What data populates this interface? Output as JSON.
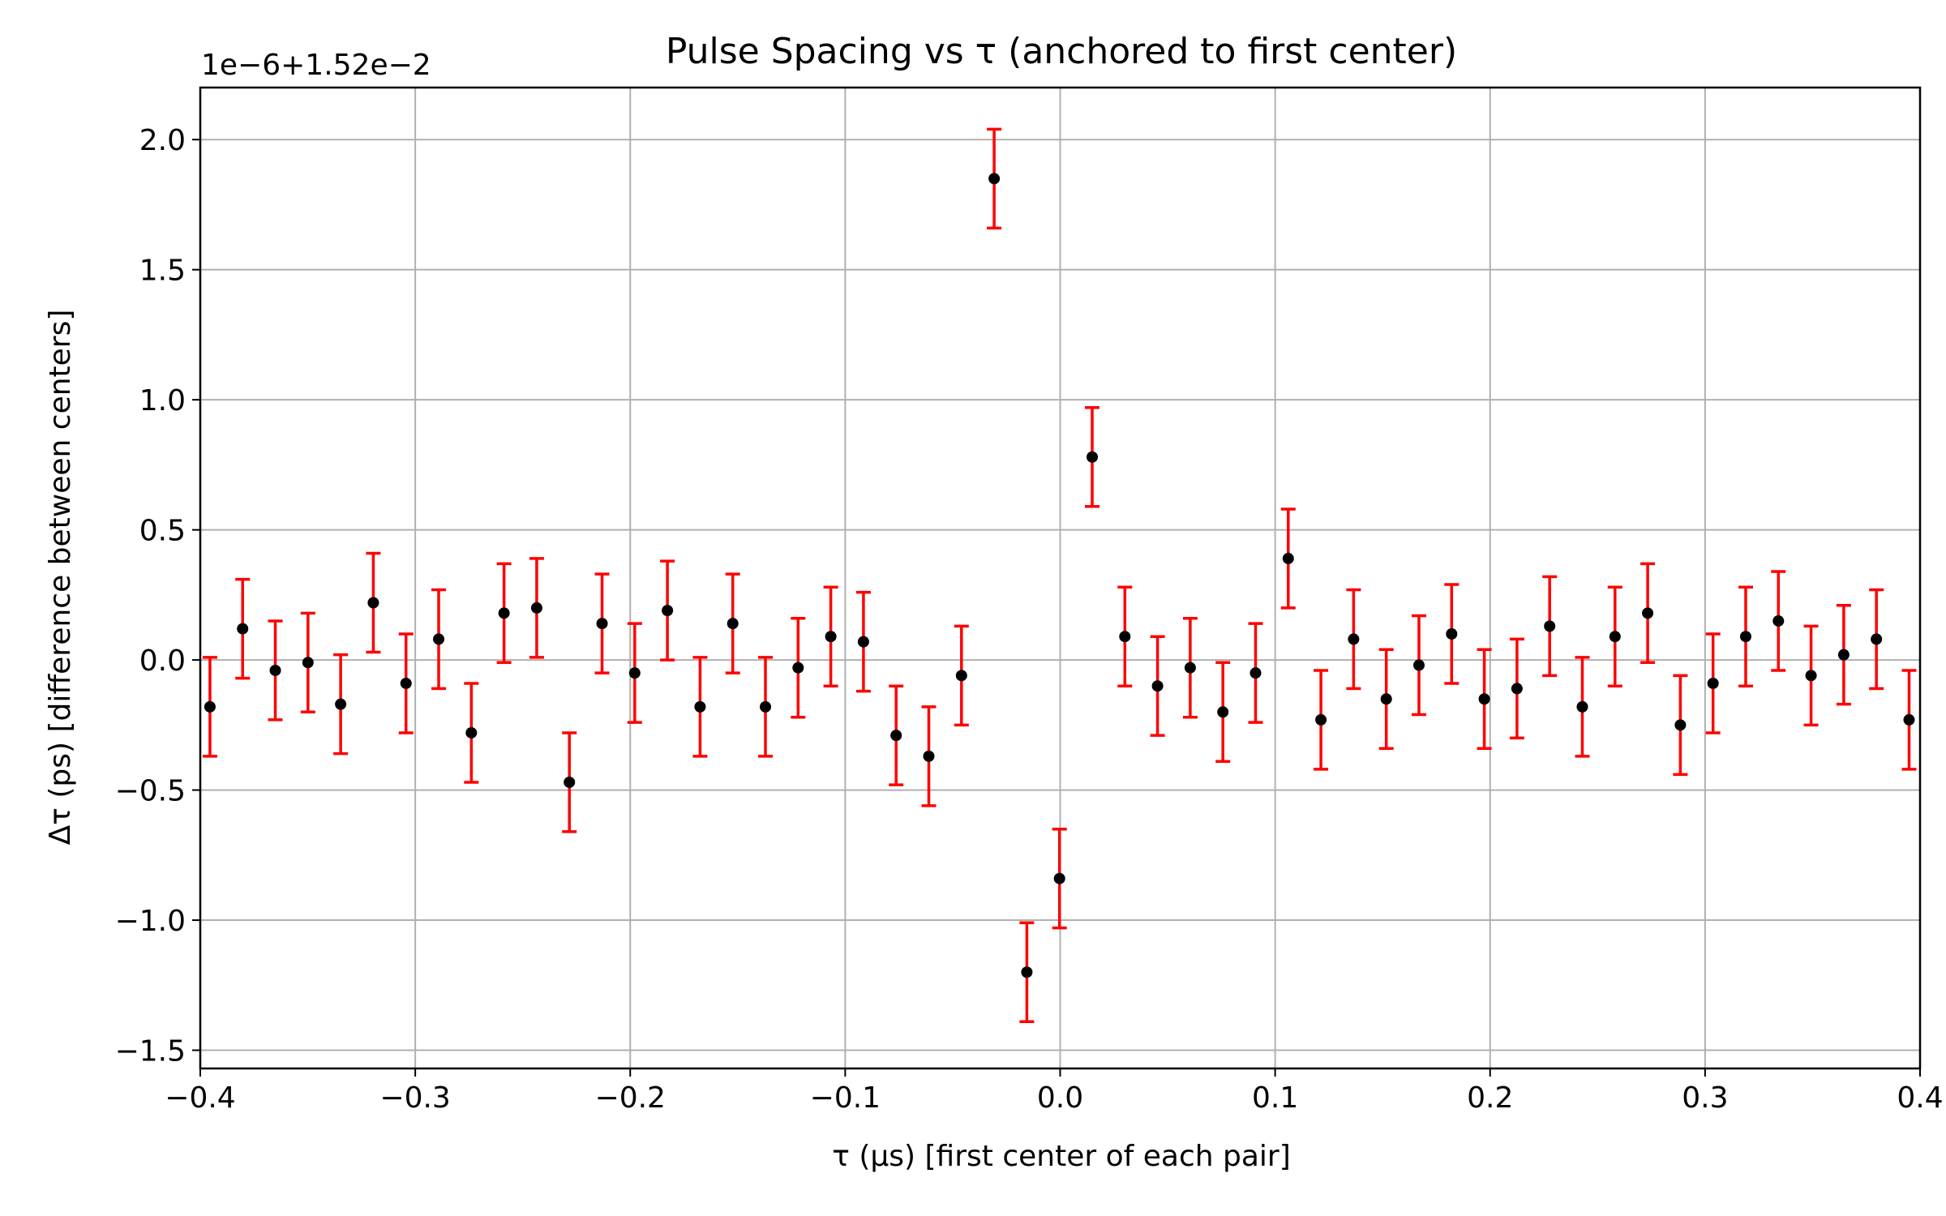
{
  "chart_data": {
    "type": "scatter",
    "title": "Pulse Spacing vs τ (anchored to first center)",
    "xlabel": "τ (μs) [first center of each pair]",
    "ylabel": "Δτ (ps) [difference between centers]",
    "y_offset_label": "1e−6+1.52e−2",
    "xlim": [
      -0.4,
      0.4
    ],
    "ylim": [
      -1.57,
      2.2
    ],
    "x_ticks": [
      -0.4,
      -0.3,
      -0.2,
      -0.1,
      0.0,
      0.1,
      0.2,
      0.3,
      0.4
    ],
    "x_tick_labels": [
      "−0.4",
      "−0.3",
      "−0.2",
      "−0.1",
      "0.0",
      "0.1",
      "0.2",
      "0.3",
      "0.4"
    ],
    "y_ticks": [
      -1.5,
      -1.0,
      -0.5,
      0.0,
      0.5,
      1.0,
      1.5,
      2.0
    ],
    "y_tick_labels": [
      "−1.5",
      "−1.0",
      "−0.5",
      "0.0",
      "0.5",
      "1.0",
      "1.5",
      "2.0"
    ],
    "grid": true,
    "marker_color": "#000000",
    "errorbar_color": "#ff0000",
    "error": 0.19,
    "x": [
      -0.3955,
      -0.3803,
      -0.3651,
      -0.3499,
      -0.3347,
      -0.3195,
      -0.3043,
      -0.2891,
      -0.2739,
      -0.2587,
      -0.2435,
      -0.2283,
      -0.2131,
      -0.1979,
      -0.1827,
      -0.1675,
      -0.1523,
      -0.1371,
      -0.1219,
      -0.1067,
      -0.0915,
      -0.0763,
      -0.0611,
      -0.0459,
      -0.0307,
      -0.0155,
      -0.0003,
      0.0149,
      0.0301,
      0.0453,
      0.0605,
      0.0757,
      0.0909,
      0.1061,
      0.1213,
      0.1365,
      0.1517,
      0.1669,
      0.1821,
      0.1973,
      0.2125,
      0.2277,
      0.2429,
      0.2581,
      0.2733,
      0.2885,
      0.3037,
      0.3189,
      0.3341,
      0.3493,
      0.3645,
      0.3797,
      0.3949
    ],
    "y": [
      -0.18,
      0.12,
      -0.04,
      -0.01,
      -0.17,
      0.22,
      -0.09,
      0.08,
      -0.28,
      0.18,
      0.2,
      -0.47,
      0.14,
      -0.05,
      0.19,
      -0.18,
      0.14,
      -0.18,
      -0.03,
      0.09,
      0.07,
      -0.29,
      -0.37,
      -0.06,
      1.85,
      -1.2,
      -0.84,
      0.78,
      0.09,
      -0.1,
      -0.03,
      -0.2,
      -0.05,
      0.39,
      -0.23,
      0.08,
      -0.15,
      -0.02,
      0.1,
      -0.15,
      -0.11,
      0.13,
      -0.18,
      0.09,
      0.18,
      -0.25,
      -0.09,
      0.09,
      0.15,
      -0.06,
      0.02,
      0.08,
      -0.23
    ]
  }
}
